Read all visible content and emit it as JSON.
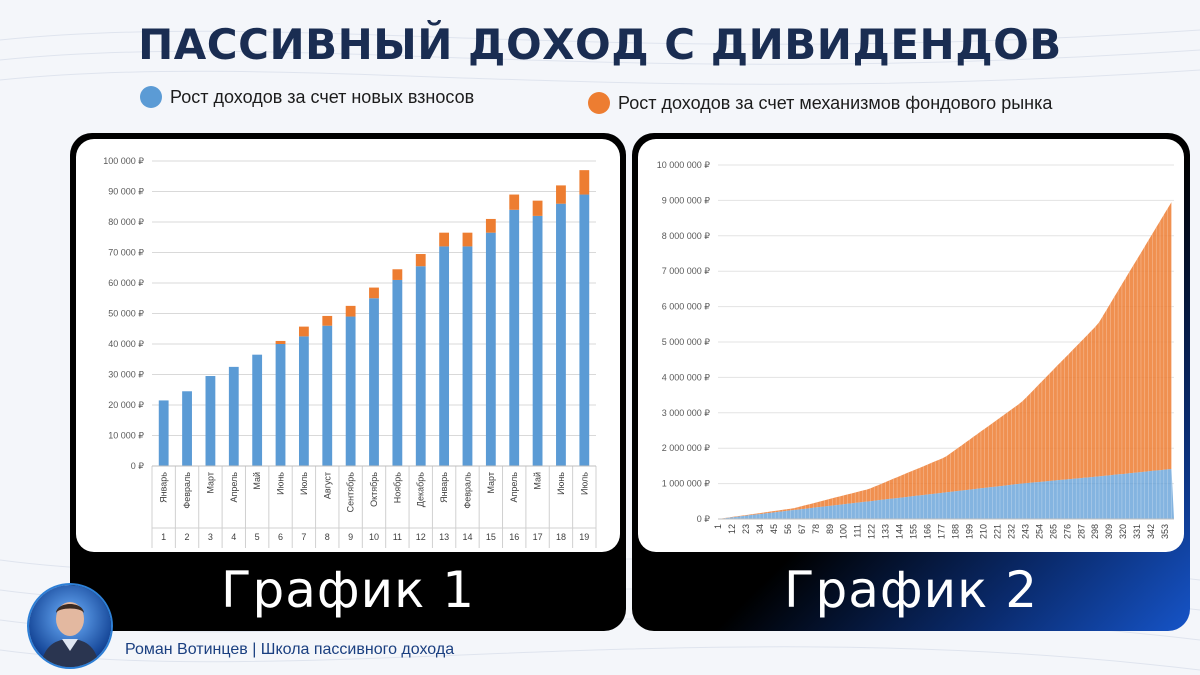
{
  "page": {
    "title": "ПАССИВНЫЙ ДОХОД С ДИВИДЕНДОВ",
    "footer": "Роман Вотинцев | Школа пассивного дохода"
  },
  "legend": [
    {
      "label": "Рост доходов за счет новых взносов",
      "color": "#5b9bd5"
    },
    {
      "label": "Рост доходов за счет механизмов фондового рынка",
      "color": "#ed7d31"
    }
  ],
  "chart_data": [
    {
      "type": "bar",
      "stacked": true,
      "panel_label": "График 1",
      "categories": [
        "1",
        "2",
        "3",
        "4",
        "5",
        "6",
        "7",
        "8",
        "9",
        "10",
        "11",
        "12",
        "13",
        "14",
        "15",
        "16",
        "17",
        "18",
        "19"
      ],
      "month_labels": [
        "Январь",
        "Февраль",
        "Март",
        "Апрель",
        "Май",
        "Июнь",
        "Июль",
        "Август",
        "Сентябрь",
        "Октябрь",
        "Ноябрь",
        "Декабрь",
        "Январь",
        "Февраль",
        "Март",
        "Апрель",
        "Май",
        "Июнь",
        "Июль"
      ],
      "series": [
        {
          "name": "Рост доходов за счет новых взносов",
          "color": "#5b9bd5",
          "values": [
            21500,
            24500,
            29500,
            32500,
            36500,
            40000,
            42500,
            46000,
            49000,
            55000,
            61000,
            65500,
            72000,
            72000,
            76500,
            84000,
            82000,
            86000,
            89000
          ]
        },
        {
          "name": "Рост доходов за счет механизмов фондового рынка",
          "color": "#ed7d31",
          "values": [
            0,
            0,
            0,
            0,
            0,
            1000,
            3200,
            3200,
            3500,
            3500,
            3500,
            4000,
            4500,
            4500,
            4500,
            5000,
            5000,
            6000,
            8000
          ]
        }
      ],
      "ylim": [
        0,
        100000
      ],
      "yticks": [
        0,
        10000,
        20000,
        30000,
        40000,
        50000,
        60000,
        70000,
        80000,
        90000,
        100000
      ],
      "ytick_labels": [
        "0 ₽",
        "10 000 ₽",
        "20 000 ₽",
        "30 000 ₽",
        "40 000 ₽",
        "50 000 ₽",
        "60 000 ₽",
        "70 000 ₽",
        "80 000 ₽",
        "90 000 ₽",
        "100 000 ₽"
      ],
      "grid": true,
      "legend": "top"
    },
    {
      "type": "bar",
      "stacked": true,
      "panel_label": "График 2",
      "x_range": [
        1,
        360
      ],
      "xtick_labels": [
        "1",
        "12",
        "23",
        "34",
        "45",
        "56",
        "67",
        "78",
        "89",
        "100",
        "111",
        "122",
        "133",
        "144",
        "155",
        "166",
        "177",
        "188",
        "199",
        "210",
        "221",
        "232",
        "243",
        "254",
        "265",
        "276",
        "287",
        "298",
        "309",
        "320",
        "331",
        "342",
        "353"
      ],
      "series": [
        {
          "name": "Рост доходов за счет новых взносов",
          "color": "#5b9bd5",
          "x": [
            1,
            60,
            120,
            180,
            240,
            300,
            360
          ],
          "values": [
            0,
            250000,
            500000,
            750000,
            1000000,
            1200000,
            1420000
          ]
        },
        {
          "name": "Рост доходов за счет механизмов фондового рынка",
          "color": "#ed7d31",
          "x": [
            1,
            60,
            120,
            180,
            240,
            300,
            360
          ],
          "values": [
            0,
            50000,
            350000,
            1000000,
            2300000,
            4300000,
            7650000
          ]
        }
      ],
      "ylim": [
        0,
        10000000
      ],
      "yticks": [
        0,
        1000000,
        2000000,
        3000000,
        4000000,
        5000000,
        6000000,
        7000000,
        8000000,
        9000000,
        10000000
      ],
      "ytick_labels": [
        "0 ₽",
        "1 000 000 ₽",
        "2 000 000 ₽",
        "3 000 000 ₽",
        "4 000 000 ₽",
        "5 000 000 ₽",
        "6 000 000 ₽",
        "7 000 000 ₽",
        "8 000 000 ₽",
        "9 000 000 ₽",
        "10 000 000 ₽"
      ],
      "grid": true,
      "legend": "top"
    }
  ]
}
